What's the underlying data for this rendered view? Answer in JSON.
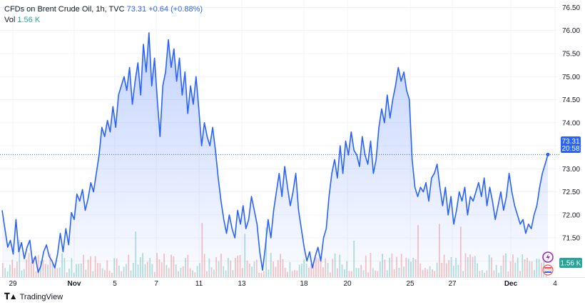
{
  "header": {
    "title": "CFDs on Brent Crude Oil, 1h, TVC",
    "last": "73.31",
    "change": "+0.64 (+0.88%)",
    "vol_label": "Vol",
    "vol_value": "1.56 K"
  },
  "badges": {
    "price": "73.31",
    "countdown": "20:58",
    "volume": "1.56 K"
  },
  "footer": {
    "brand": "TradingView"
  },
  "colors": {
    "line": "#2962ff",
    "vol_up": "#26a69a",
    "vol_down": "#ef5350"
  },
  "chart_data": {
    "type": "area",
    "title": "CFDs on Brent Crude Oil, 1h, TVC",
    "x_ticks": [
      "29",
      "Nov",
      "5",
      "7",
      "11",
      "13",
      "18",
      "20",
      "25",
      "27",
      "Dec",
      "4"
    ],
    "y_ticks": [
      "76.50",
      "76.00",
      "75.50",
      "75.00",
      "74.50",
      "74.00",
      "73.50",
      "73.00",
      "72.50",
      "72.00",
      "71.50",
      "71.00"
    ],
    "ylim": [
      70.65,
      76.6
    ],
    "last_value": 73.31,
    "grid": true,
    "series": [
      {
        "values": [
          72.1,
          71.7,
          71.3,
          71.45,
          71.15,
          71.9,
          71.2,
          71.4,
          71.05,
          71.3,
          71.45,
          70.95,
          71.1,
          70.75,
          70.9,
          71.2,
          71.35,
          71.1,
          71.0,
          70.85,
          71.15,
          71.6,
          71.2,
          71.7,
          71.35,
          72.05,
          71.9,
          72.45,
          72.3,
          72.55,
          72.1,
          72.35,
          72.7,
          72.5,
          72.9,
          73.3,
          73.9,
          73.7,
          74.05,
          73.8,
          74.35,
          73.9,
          74.6,
          74.8,
          75.0,
          74.7,
          75.2,
          74.4,
          74.9,
          75.3,
          74.6,
          75.7,
          75.1,
          75.95,
          74.8,
          75.4,
          74.5,
          73.7,
          74.8,
          75.1,
          75.8,
          75.2,
          75.6,
          74.9,
          75.4,
          74.6,
          75.1,
          74.2,
          74.8,
          74.4,
          75.0,
          74.3,
          73.5,
          74.0,
          73.7,
          73.5,
          73.9,
          73.4,
          72.8,
          72.3,
          71.9,
          71.6,
          72.0,
          71.7,
          71.5,
          72.1,
          71.8,
          72.2,
          71.7,
          71.9,
          72.4,
          72.1,
          71.8,
          71.2,
          70.8,
          71.3,
          71.9,
          71.5,
          72.1,
          72.5,
          72.9,
          72.4,
          73.05,
          72.6,
          72.2,
          72.5,
          72.9,
          72.1,
          71.7,
          71.3,
          71.0,
          71.2,
          70.85,
          71.1,
          71.3,
          71.0,
          71.5,
          71.7,
          72.4,
          72.9,
          73.2,
          72.8,
          73.5,
          72.9,
          73.6,
          73.3,
          73.8,
          73.4,
          73.3,
          73.05,
          73.7,
          73.3,
          73.1,
          73.6,
          72.9,
          73.2,
          73.9,
          74.3,
          74.0,
          74.6,
          74.1,
          74.5,
          74.8,
          75.2,
          74.9,
          75.1,
          74.7,
          74.5,
          73.2,
          72.6,
          72.4,
          72.6,
          72.5,
          72.7,
          72.3,
          72.8,
          72.9,
          73.1,
          72.6,
          72.2,
          72.6,
          72.0,
          72.4,
          71.8,
          72.1,
          72.5,
          72.3,
          72.6,
          72.0,
          72.4,
          72.3,
          72.5,
          72.7,
          72.4,
          72.8,
          72.2,
          72.6,
          72.3,
          71.9,
          72.2,
          72.5,
          72.1,
          72.4,
          72.9,
          72.5,
          72.2,
          72.0,
          71.8,
          71.9,
          71.6,
          71.8,
          71.7,
          72.0,
          72.2,
          72.6,
          72.9,
          73.1,
          73.31
        ]
      }
    ]
  }
}
